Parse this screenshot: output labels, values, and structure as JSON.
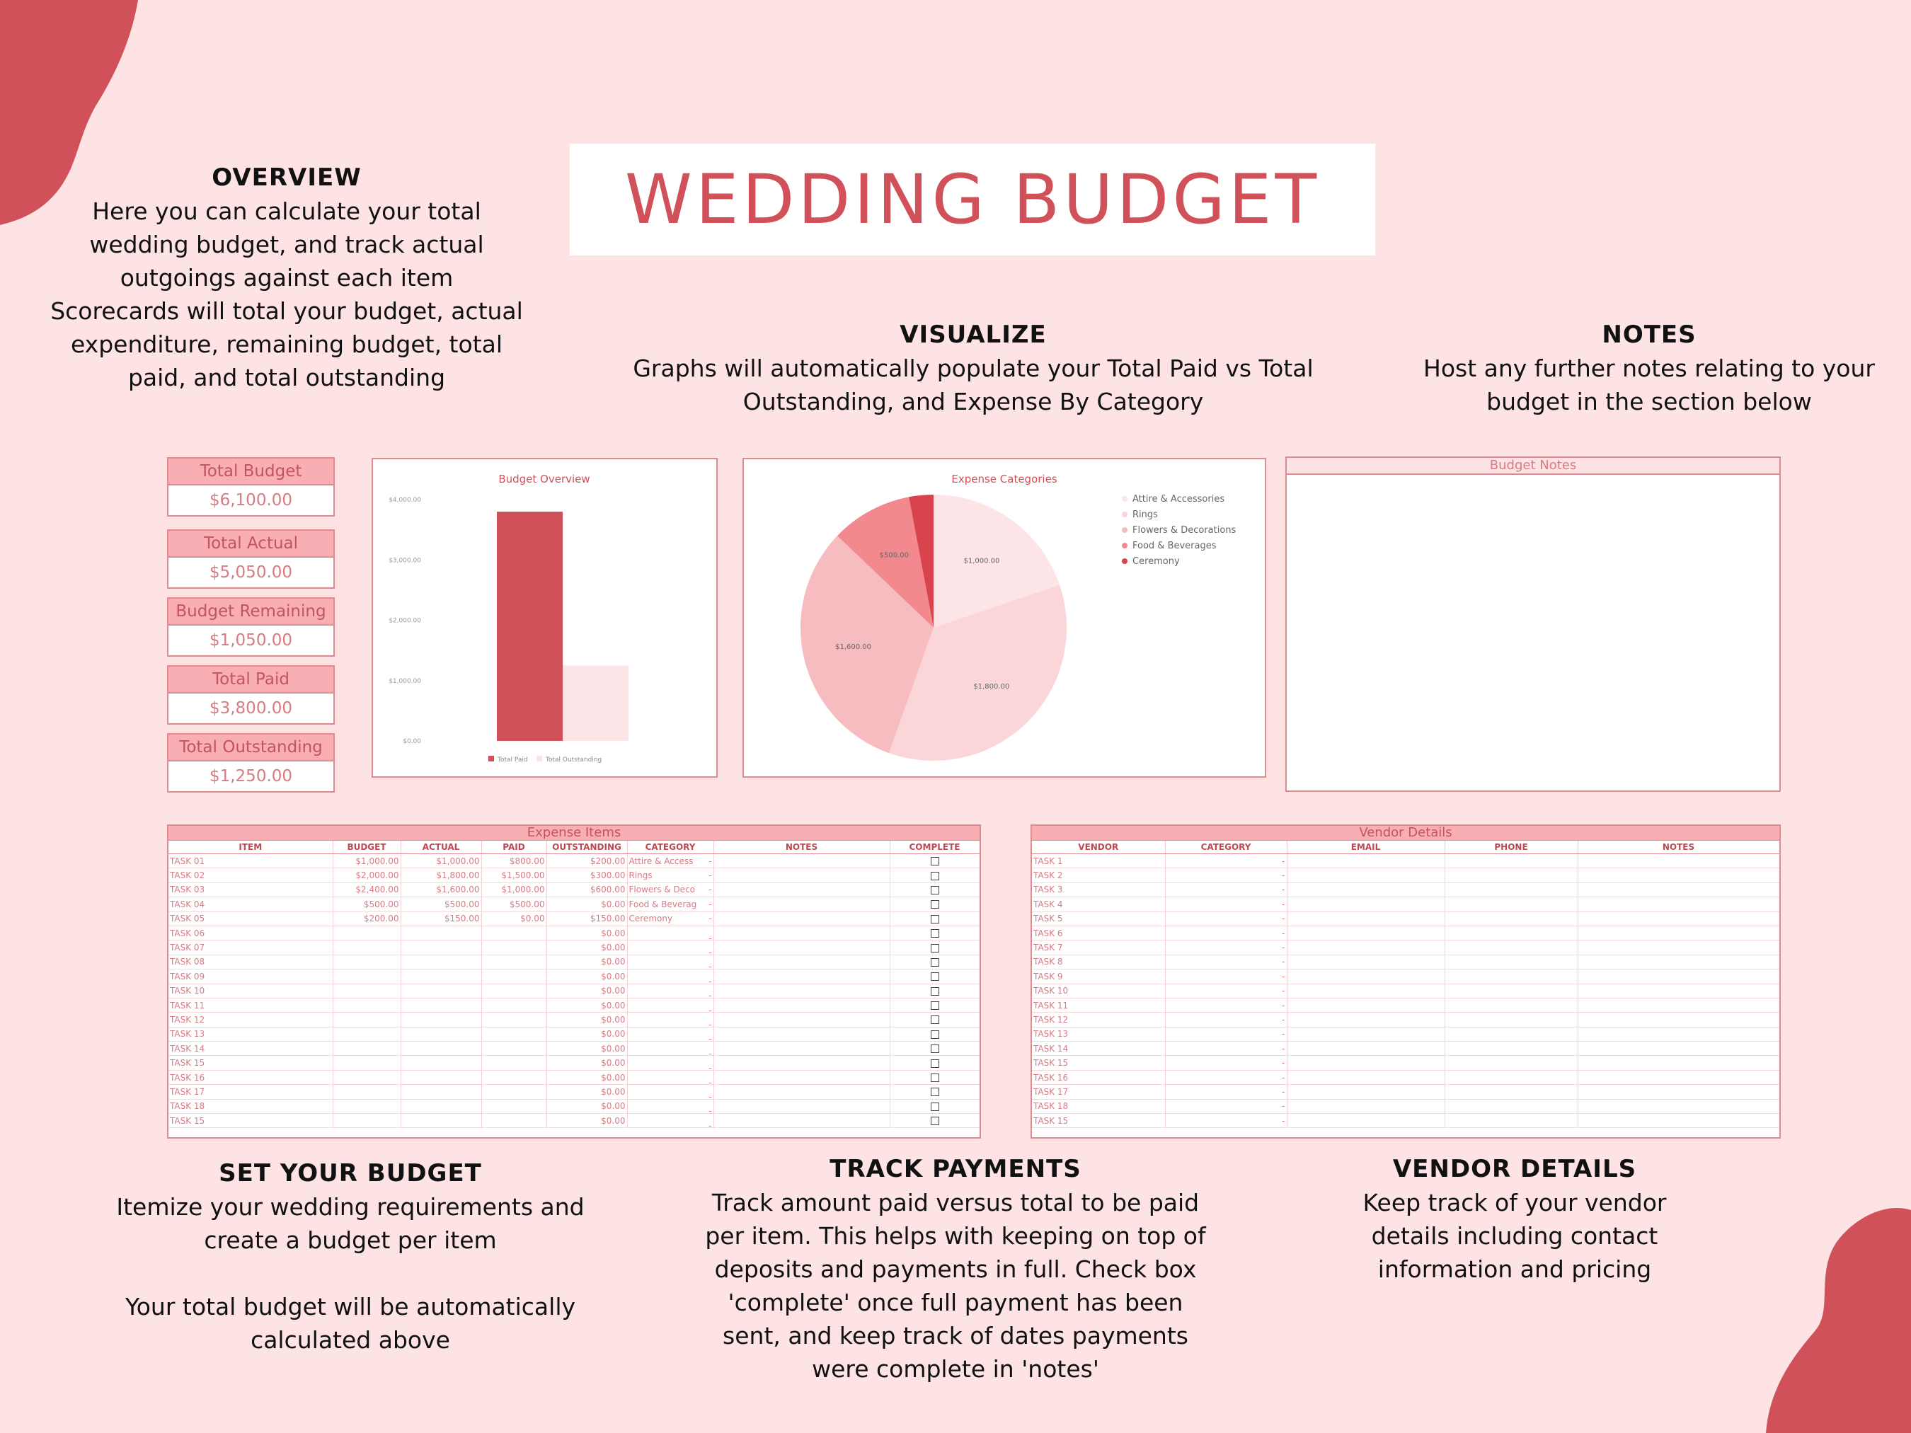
{
  "title": "WEDDING BUDGET",
  "overview": {
    "heading": "OVERVIEW",
    "text": "Here you can calculate your total\nwedding budget, and track actual\noutgoings against each item\nScorecards will total your budget, actual\nexpenditure, remaining budget, total\npaid, and total outstanding"
  },
  "visualize": {
    "heading": "VISUALIZE",
    "text": "Graphs will automatically populate your Total Paid vs Total\nOutstanding, and Expense By Category"
  },
  "notes_info": {
    "heading": "NOTES",
    "text": "Host any further notes relating to your\nbudget in the section below"
  },
  "set_budget": {
    "heading": "SET YOUR BUDGET",
    "text": "Itemize your wedding requirements and\ncreate a budget per item\n\nYour total budget will be automatically\ncalculated above"
  },
  "track_payments": {
    "heading": "TRACK PAYMENTS",
    "text": "Track amount paid versus total to be paid\nper item. This helps with keeping on top of\ndeposits and payments in full. Check box\n'complete' once full payment has been\nsent, and keep track of dates payments\nwere complete in 'notes'"
  },
  "vendor_info": {
    "heading": "VENDOR DETAILS",
    "text": "Keep track of your vendor\ndetails including contact\ninformation and pricing"
  },
  "scorecards": [
    {
      "label": "Total Budget",
      "value": "$6,100.00"
    },
    {
      "label": "Total Actual",
      "value": "$5,050.00"
    },
    {
      "label": "Budget Remaining",
      "value": "$1,050.00"
    },
    {
      "label": "Total Paid",
      "value": "$3,800.00"
    },
    {
      "label": "Total Outstanding",
      "value": "$1,250.00"
    }
  ],
  "colors": {
    "accent": "#d0515a",
    "background": "#fee3e4",
    "pie": [
      "#fde4e6",
      "#fbd6d8",
      "#f6bcc0",
      "#f2898e",
      "#d9434c"
    ]
  },
  "chart_data": [
    {
      "type": "bar",
      "title": "Budget Overview",
      "categories": [
        "Total Paid",
        "Total Outstanding"
      ],
      "values": [
        3800,
        1250
      ],
      "ylim": [
        0,
        4000
      ],
      "yticks": [
        "$0.00",
        "$1,000.00",
        "$2,000.00",
        "$3,000.00",
        "$4,000.00"
      ],
      "legend": [
        "Total Paid",
        "Total Outstanding"
      ],
      "legend_position": "bottom",
      "colors": [
        "#d0515a",
        "#fde4e6"
      ]
    },
    {
      "type": "pie",
      "title": "Expense Categories",
      "categories": [
        "Attire & Accessories",
        "Rings",
        "Flowers & Decorations",
        "Food & Beverages",
        "Ceremony"
      ],
      "values": [
        1000,
        1800,
        1600,
        500,
        150
      ],
      "labels": [
        "$1,000.00",
        "$1,800.00",
        "$1,600.00",
        "$500.00",
        ""
      ],
      "legend_position": "right"
    }
  ],
  "notes_panel": {
    "title": "Budget Notes"
  },
  "expense_sheet": {
    "title": "Expense Items",
    "columns": [
      "ITEM",
      "BUDGET",
      "ACTUAL",
      "PAID",
      "OUTSTANDING",
      "CATEGORY",
      "NOTES",
      "COMPLETE"
    ],
    "rows": [
      [
        "TASK 01",
        "$1,000.00",
        "$1,000.00",
        "$800.00",
        "$200.00",
        "Attire & Access",
        "-"
      ],
      [
        "TASK 02",
        "$2,000.00",
        "$1,800.00",
        "$1,500.00",
        "$300.00",
        "Rings",
        "-"
      ],
      [
        "TASK 03",
        "$2,400.00",
        "$1,600.00",
        "$1,000.00",
        "$600.00",
        "Flowers & Deco",
        "-"
      ],
      [
        "TASK 04",
        "$500.00",
        "$500.00",
        "$500.00",
        "$0.00",
        "Food & Beverag",
        "-"
      ],
      [
        "TASK 05",
        "$200.00",
        "$150.00",
        "$0.00",
        "$150.00",
        "Ceremony",
        "-"
      ],
      [
        "TASK 06",
        "",
        "",
        "",
        "$0.00",
        "",
        "-"
      ],
      [
        "TASK 07",
        "",
        "",
        "",
        "$0.00",
        "",
        "-"
      ],
      [
        "TASK 08",
        "",
        "",
        "",
        "$0.00",
        "",
        "-"
      ],
      [
        "TASK 09",
        "",
        "",
        "",
        "$0.00",
        "",
        "-"
      ],
      [
        "TASK 10",
        "",
        "",
        "",
        "$0.00",
        "",
        "-"
      ],
      [
        "TASK 11",
        "",
        "",
        "",
        "$0.00",
        "",
        "-"
      ],
      [
        "TASK 12",
        "",
        "",
        "",
        "$0.00",
        "",
        "-"
      ],
      [
        "TASK 13",
        "",
        "",
        "",
        "$0.00",
        "",
        "-"
      ],
      [
        "TASK 14",
        "",
        "",
        "",
        "$0.00",
        "",
        "-"
      ],
      [
        "TASK 15",
        "",
        "",
        "",
        "$0.00",
        "",
        "-"
      ],
      [
        "TASK 16",
        "",
        "",
        "",
        "$0.00",
        "",
        "-"
      ],
      [
        "TASK 17",
        "",
        "",
        "",
        "$0.00",
        "",
        "-"
      ],
      [
        "TASK 18",
        "",
        "",
        "",
        "$0.00",
        "",
        "-"
      ],
      [
        "TASK 15",
        "",
        "",
        "",
        "$0.00",
        "",
        "-"
      ]
    ]
  },
  "vendor_sheet": {
    "title": "Vendor Details",
    "columns": [
      "VENDOR",
      "CATEGORY",
      "EMAIL",
      "PHONE",
      "NOTES"
    ],
    "rows": [
      "TASK 1",
      "TASK 2",
      "TASK 3",
      "TASK 4",
      "TASK 5",
      "TASK 6",
      "TASK 7",
      "TASK 8",
      "TASK 9",
      "TASK 10",
      "TASK 11",
      "TASK 12",
      "TASK 13",
      "TASK 14",
      "TASK 15",
      "TASK 16",
      "TASK 17",
      "TASK 18",
      "TASK 15"
    ],
    "dash": "-"
  }
}
